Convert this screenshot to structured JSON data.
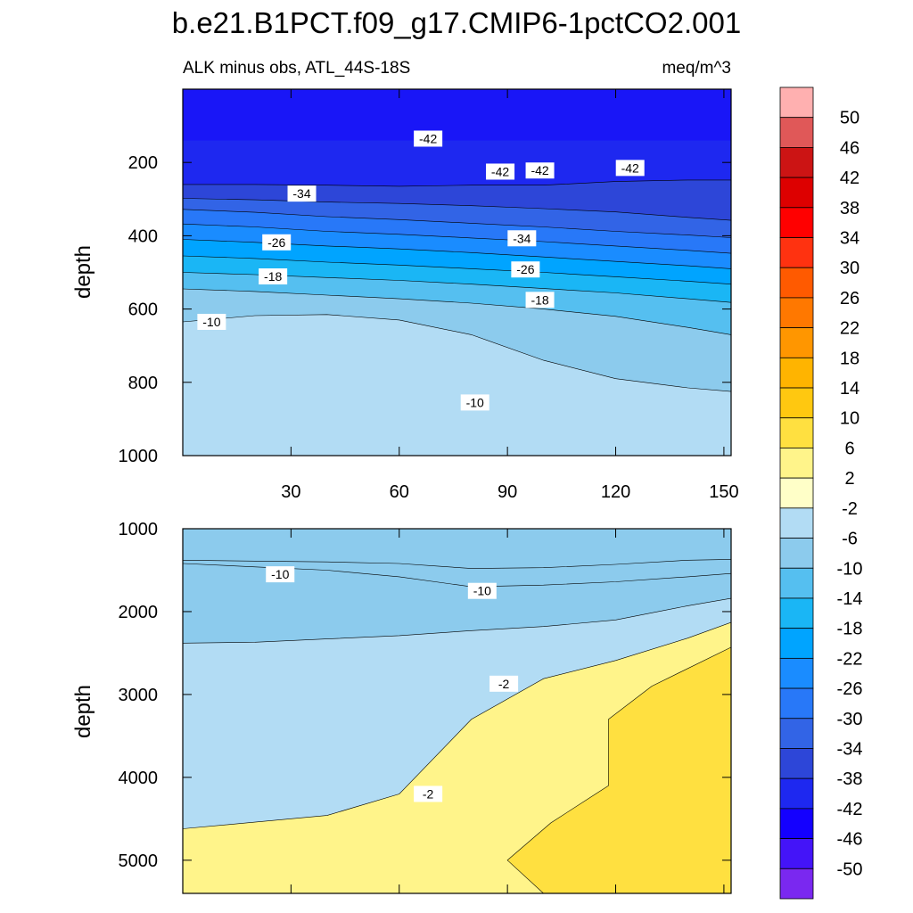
{
  "figure": {
    "title": "b.e21.B1PCT.f09_g17.CMIP6-1pctCO2.001"
  },
  "chart_data": [
    {
      "type": "contour",
      "panel": "upper",
      "title_left": "ALK minus obs, ATL_44S-18S",
      "title_right": "meq/m^3",
      "xlabel": "",
      "ylabel": "depth",
      "xlim": [
        0,
        152
      ],
      "ylim": [
        0,
        1000
      ],
      "yaxis_inverted": true,
      "xticks": [
        30,
        60,
        90,
        120,
        150
      ],
      "xtick_labels": [
        "30",
        "60",
        "90",
        "120",
        "150"
      ],
      "yticks": [
        200,
        400,
        600,
        800,
        1000
      ],
      "ytick_labels": [
        "200",
        "400",
        "600",
        "800",
        "1000"
      ],
      "contour_lines": [
        {
          "level": -42,
          "x": [
            0,
            20,
            40,
            60,
            80,
            100,
            120,
            140,
            152
          ],
          "depth": [
            260,
            260,
            262,
            265,
            262,
            262,
            252,
            248,
            248
          ]
        },
        {
          "level": -38,
          "x": [
            0,
            20,
            40,
            60,
            80,
            100,
            120,
            140,
            152
          ],
          "depth": [
            298,
            302,
            308,
            312,
            318,
            326,
            335,
            350,
            358
          ]
        },
        {
          "level": -34,
          "x": [
            0,
            20,
            40,
            60,
            80,
            100,
            120,
            140,
            152
          ],
          "depth": [
            328,
            336,
            348,
            356,
            366,
            376,
            388,
            398,
            405
          ]
        },
        {
          "level": -30,
          "x": [
            0,
            20,
            40,
            60,
            80,
            100,
            120,
            140,
            152
          ],
          "depth": [
            368,
            376,
            388,
            396,
            406,
            416,
            428,
            440,
            448
          ]
        },
        {
          "level": -26,
          "x": [
            0,
            20,
            40,
            60,
            80,
            100,
            120,
            140,
            152
          ],
          "depth": [
            410,
            418,
            428,
            436,
            446,
            458,
            470,
            482,
            490
          ]
        },
        {
          "level": -22,
          "x": [
            0,
            20,
            40,
            60,
            80,
            100,
            120,
            140,
            152
          ],
          "depth": [
            455,
            462,
            472,
            480,
            490,
            500,
            512,
            524,
            532
          ]
        },
        {
          "level": -18,
          "x": [
            0,
            20,
            40,
            60,
            80,
            100,
            120,
            140,
            152
          ],
          "depth": [
            500,
            506,
            514,
            522,
            532,
            544,
            556,
            572,
            582
          ]
        },
        {
          "level": -14,
          "x": [
            0,
            20,
            40,
            60,
            80,
            100,
            120,
            140,
            152
          ],
          "depth": [
            545,
            552,
            562,
            572,
            584,
            600,
            620,
            650,
            670
          ]
        },
        {
          "level": -10,
          "x": [
            0,
            20,
            40,
            60,
            80,
            100,
            120,
            140,
            152
          ],
          "depth": [
            635,
            618,
            615,
            630,
            670,
            740,
            790,
            815,
            825
          ]
        }
      ],
      "labels": [
        {
          "text": "-42",
          "x": 68,
          "depth": 135
        },
        {
          "text": "-42",
          "x": 88,
          "depth": 225
        },
        {
          "text": "-42",
          "x": 99,
          "depth": 222
        },
        {
          "text": "-42",
          "x": 124,
          "depth": 215
        },
        {
          "text": "-34",
          "x": 33,
          "depth": 285
        },
        {
          "text": "-34",
          "x": 94,
          "depth": 407
        },
        {
          "text": "-26",
          "x": 26,
          "depth": 418
        },
        {
          "text": "-26",
          "x": 95,
          "depth": 492
        },
        {
          "text": "-18",
          "x": 25,
          "depth": 511
        },
        {
          "text": "-18",
          "x": 99,
          "depth": 575
        },
        {
          "text": "-10",
          "x": 8,
          "depth": 635
        },
        {
          "text": "-10",
          "x": 81,
          "depth": 855
        }
      ]
    },
    {
      "type": "contour",
      "panel": "lower",
      "xlabel": "",
      "ylabel": "depth",
      "xlim": [
        0,
        152
      ],
      "ylim": [
        1000,
        5400
      ],
      "yaxis_inverted": true,
      "yticks": [
        1000,
        2000,
        3000,
        4000,
        5000
      ],
      "ytick_labels": [
        "1000",
        "2000",
        "3000",
        "4000",
        "5000"
      ],
      "contour_lines": [
        {
          "level": -10,
          "x": [
            0,
            20,
            40,
            60,
            80,
            100,
            120,
            140,
            152
          ],
          "depth": [
            1380,
            1390,
            1400,
            1420,
            1480,
            1470,
            1430,
            1380,
            1370
          ]
        },
        {
          "level": -10,
          "x": [
            0,
            20,
            40,
            60,
            80,
            100,
            120,
            140,
            152
          ],
          "depth": [
            1420,
            1460,
            1500,
            1580,
            1700,
            1680,
            1640,
            1580,
            1540
          ]
        },
        {
          "level": -6,
          "x": [
            0,
            20,
            40,
            60,
            80,
            100,
            120,
            140,
            152
          ],
          "depth": [
            2380,
            2370,
            2330,
            2290,
            2230,
            2180,
            2100,
            1930,
            1840
          ]
        },
        {
          "level": -2,
          "x": [
            0,
            20,
            40,
            60,
            80,
            100,
            120,
            140,
            152
          ],
          "depth": [
            4620,
            4540,
            4460,
            4200,
            3300,
            2810,
            2590,
            2320,
            2130
          ]
        }
      ],
      "labels": [
        {
          "text": "-10",
          "x": 27,
          "depth": 1550
        },
        {
          "text": "-10",
          "x": 83,
          "depth": 1750
        },
        {
          "text": "-2",
          "x": 89,
          "depth": 2870
        },
        {
          "text": "-2",
          "x": 68,
          "depth": 4200
        }
      ]
    }
  ],
  "colorbar": {
    "levels": [
      "-50",
      "-46",
      "-42",
      "-38",
      "-34",
      "-30",
      "-26",
      "-22",
      "-18",
      "-14",
      "-10",
      "-6",
      "-2",
      "2",
      "6",
      "10",
      "14",
      "18",
      "22",
      "26",
      "30",
      "34",
      "38",
      "42",
      "46",
      "50"
    ],
    "colors_top_to_bottom": [
      "#ffb0b0",
      "#e05858",
      "#cc1414",
      "#dd0000",
      "#ff0000",
      "#ff3210",
      "#ff5a00",
      "#ff7800",
      "#ff9600",
      "#ffb400",
      "#ffc810",
      "#ffe040",
      "#fff48a",
      "#ffffc8",
      "#b2dcf4",
      "#8ccbed",
      "#55bff0",
      "#1ab6f5",
      "#00a4ff",
      "#1a8cff",
      "#2878f8",
      "#3264e6",
      "#2d46d8",
      "#1e28f0",
      "#1400ff",
      "#4414f8",
      "#7a28f0"
    ]
  }
}
